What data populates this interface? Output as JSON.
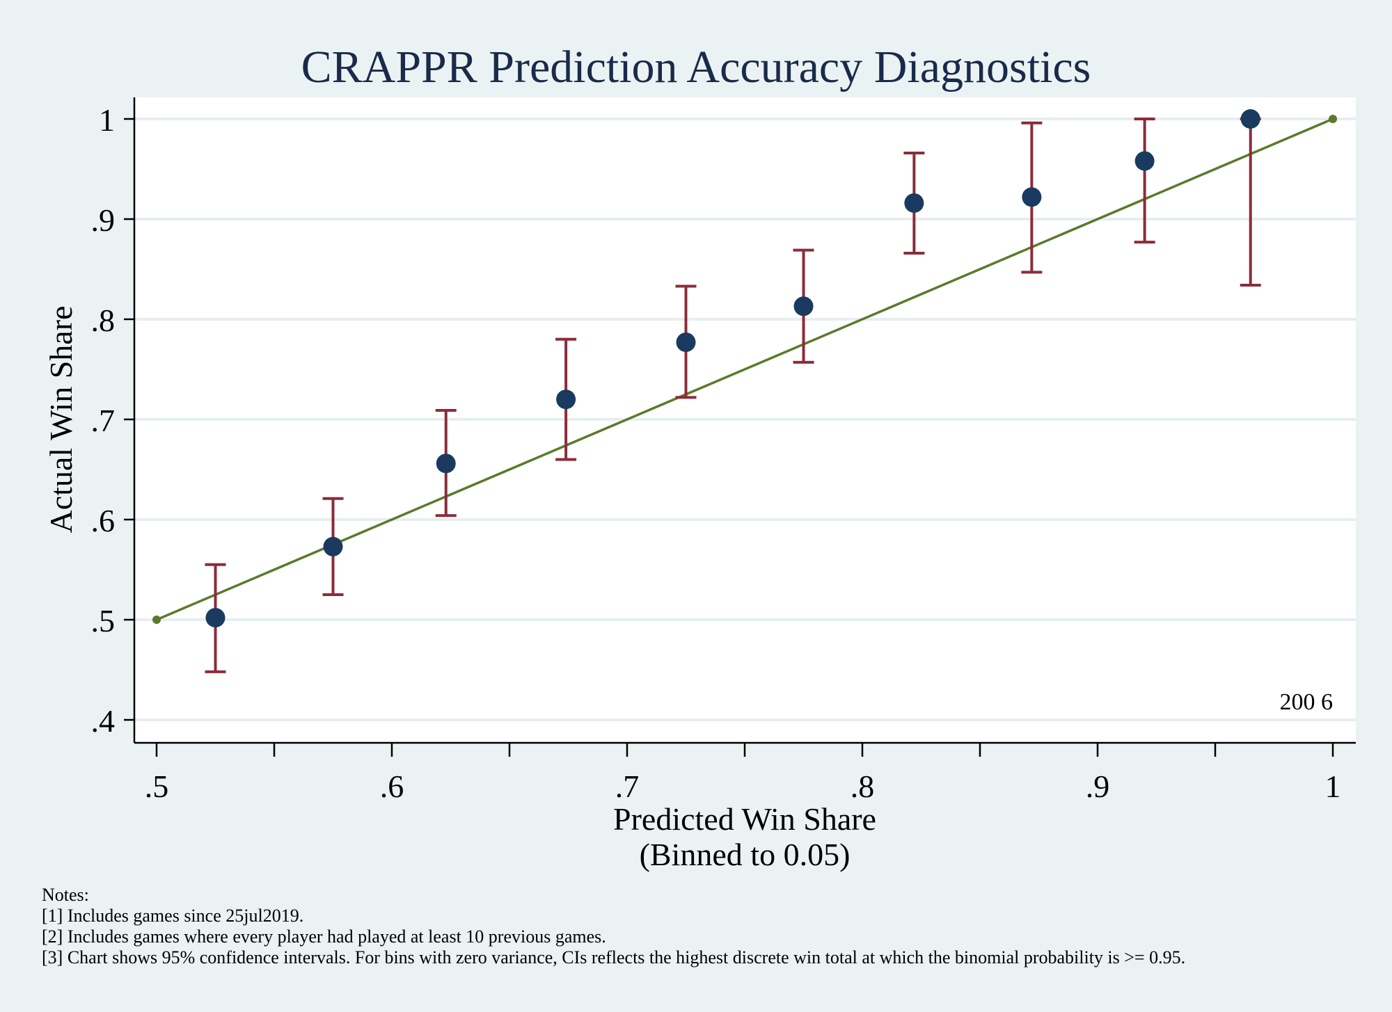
{
  "chart_data": {
    "type": "scatter",
    "title": "CRAPPR Prediction Accuracy Diagnostics",
    "xlabel": [
      "Predicted Win Share",
      "(Binned to 0.05)"
    ],
    "ylabel": "Actual Win Share",
    "xlim": [
      0.5,
      1.0
    ],
    "ylim": [
      0.4,
      1.0
    ],
    "x_ticks": [
      0.5,
      0.6,
      0.7,
      0.8,
      0.9,
      1.0
    ],
    "x_minor_ticks": [
      0.55,
      0.65,
      0.75,
      0.85,
      0.95
    ],
    "x_tick_labels": [
      ".5",
      ".6",
      ".7",
      ".8",
      ".9",
      "1"
    ],
    "y_ticks": [
      0.4,
      0.5,
      0.6,
      0.7,
      0.8,
      0.9,
      1.0
    ],
    "y_tick_labels": [
      ".4",
      ".5",
      ".6",
      ".7",
      ".8",
      ".9",
      "1"
    ],
    "grid": "horizontal",
    "points": [
      {
        "x": 0.525,
        "y": 0.502,
        "lo": 0.448,
        "hi": 0.555
      },
      {
        "x": 0.575,
        "y": 0.573,
        "lo": 0.525,
        "hi": 0.621
      },
      {
        "x": 0.623,
        "y": 0.656,
        "lo": 0.604,
        "hi": 0.709
      },
      {
        "x": 0.674,
        "y": 0.72,
        "lo": 0.66,
        "hi": 0.78
      },
      {
        "x": 0.725,
        "y": 0.777,
        "lo": 0.722,
        "hi": 0.833
      },
      {
        "x": 0.775,
        "y": 0.813,
        "lo": 0.757,
        "hi": 0.869
      },
      {
        "x": 0.822,
        "y": 0.916,
        "lo": 0.866,
        "hi": 0.966
      },
      {
        "x": 0.872,
        "y": 0.922,
        "lo": 0.847,
        "hi": 0.996
      },
      {
        "x": 0.92,
        "y": 0.958,
        "lo": 0.877,
        "hi": 1.0
      },
      {
        "x": 0.965,
        "y": 1.0,
        "lo": 0.834,
        "hi": 1.0
      }
    ],
    "reference_line": {
      "x": [
        0.5,
        1.0
      ],
      "y": [
        0.5,
        1.0
      ]
    },
    "annotation": "200 6",
    "colors": {
      "background": "#eaf2f3",
      "plot_area": "#ffffff",
      "gridline": "#e6eef1",
      "point": "#1a3a5f",
      "error_bar": "#8b2c3a",
      "reference_line": "#5a7a2a",
      "title": "#1a2a4a"
    }
  },
  "notes": {
    "heading": "Notes:",
    "items": [
      "[1] Includes games since 25jul2019.",
      "[2] Includes games where every player had played at least 10 previous games.",
      "[3] Chart shows 95% confidence intervals. For bins with zero variance, CIs reflects the highest discrete win total at which the binomial probability is >= 0.95."
    ]
  }
}
